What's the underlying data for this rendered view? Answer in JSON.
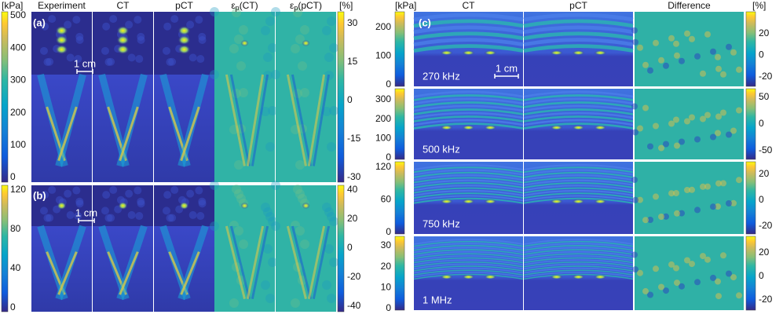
{
  "panel_a": {
    "label": "(a)",
    "unit": "[kPa]",
    "error_unit": "[%]",
    "columns": [
      "Experiment",
      "CT",
      "pCT"
    ],
    "error_columns": [
      {
        "symbol": "ε",
        "subscript": "p",
        "argument": "(CT)"
      },
      {
        "symbol": "ε",
        "subscript": "p",
        "argument": "(pCT)"
      }
    ],
    "colorbar_ticks": [
      500,
      400,
      300,
      200,
      100,
      0
    ],
    "error_colorbar_ticks": [
      30,
      15,
      0,
      -15,
      -30
    ],
    "scale_bar": "1 cm"
  },
  "panel_b": {
    "label": "(b)",
    "colorbar_ticks": [
      120,
      80,
      40,
      0
    ],
    "error_colorbar_ticks": [
      40,
      20,
      0,
      -20,
      -40
    ],
    "scale_bar": "1 cm"
  },
  "panel_c": {
    "label": "(c)",
    "unit": "[kPa]",
    "error_unit": "[%]",
    "columns": [
      "CT",
      "pCT",
      "Difference"
    ],
    "scale_bar": "1 cm",
    "rows": [
      {
        "frequency": "270 kHz",
        "colorbar_ticks": [
          200,
          100,
          0
        ],
        "error_colorbar_ticks": [
          20,
          0,
          -20
        ]
      },
      {
        "frequency": "500 kHz",
        "colorbar_ticks": [
          300,
          200,
          100,
          0
        ],
        "error_colorbar_ticks": [
          50,
          0,
          -50
        ]
      },
      {
        "frequency": "750 kHz",
        "colorbar_ticks": [
          120,
          60,
          0
        ],
        "error_colorbar_ticks": [
          20,
          0,
          -20
        ]
      },
      {
        "frequency": "1 MHz",
        "colorbar_ticks": [
          30,
          20,
          10,
          0
        ],
        "error_colorbar_ticks": [
          20,
          0,
          -20
        ]
      }
    ]
  }
}
